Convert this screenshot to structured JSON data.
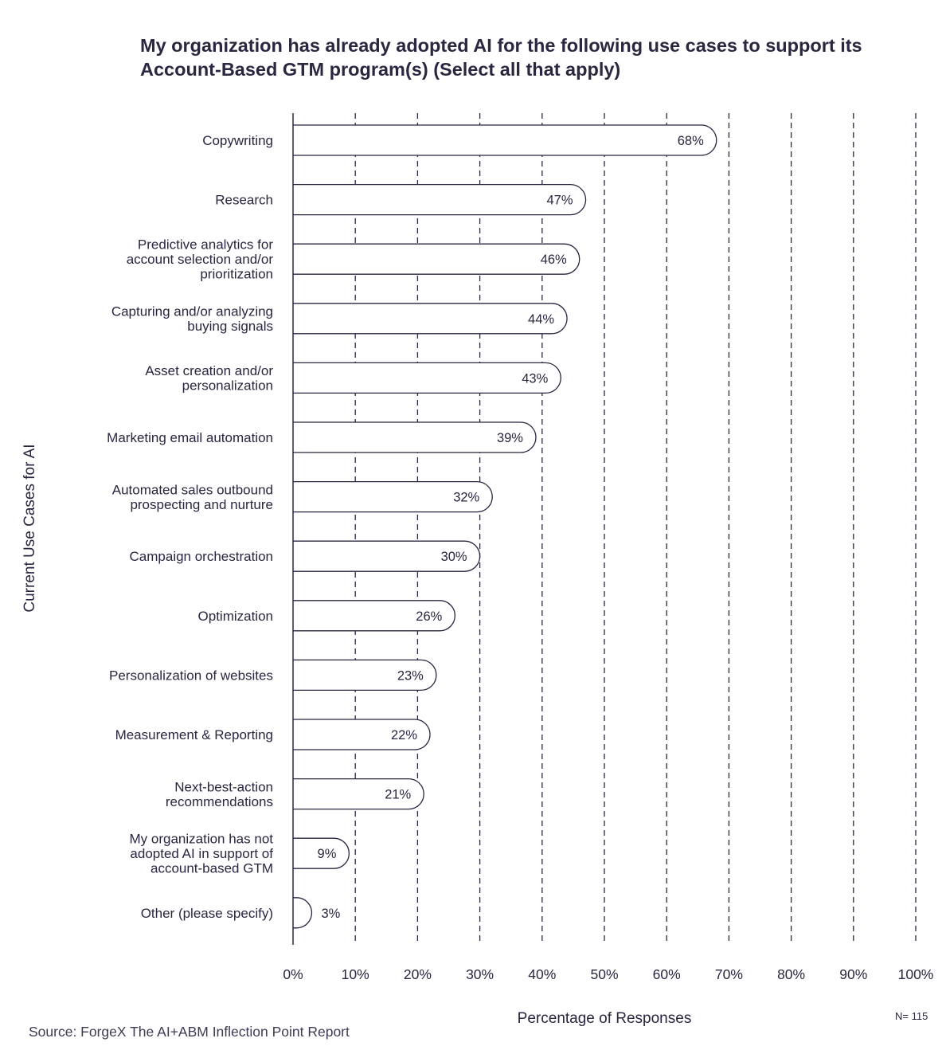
{
  "chart_data": {
    "type": "bar",
    "orientation": "horizontal",
    "title": "My organization has already adopted AI for the following use cases to support its Account-Based GTM program(s) (Select all that apply)",
    "title_lines": [
      "My organization has already adopted AI for the following use cases to support its",
      "Account-Based GTM program(s) (Select all that apply)"
    ],
    "ylabel": "Current Use Cases for AI",
    "xlabel": "Percentage of Responses",
    "xlim": [
      0,
      100
    ],
    "x_ticks": [
      "0%",
      "10%",
      "20%",
      "30%",
      "40%",
      "50%",
      "60%",
      "70%",
      "80%",
      "90%",
      "100%"
    ],
    "grid": "vertical dashed",
    "categories": [
      "Copywriting",
      "Research",
      "Predictive analytics for account selection and/or prioritization",
      "Capturing and/or analyzing buying signals",
      "Asset creation and/or personalization",
      "Marketing email automation",
      "Automated sales outbound prospecting and nurture",
      "Campaign orchestration",
      "Optimization",
      "Personalization of websites",
      "Measurement & Reporting",
      "Next-best-action recommendations",
      "My organization has not adopted AI in support of account-based GTM",
      "Other (please specify)"
    ],
    "category_lines": [
      [
        "Copywriting"
      ],
      [
        "Research"
      ],
      [
        "Predictive analytics for",
        "account selection and/or",
        "prioritization"
      ],
      [
        "Capturing and/or analyzing",
        "buying signals"
      ],
      [
        "Asset creation and/or",
        "personalization"
      ],
      [
        "Marketing email automation"
      ],
      [
        "Automated sales outbound",
        "prospecting and nurture"
      ],
      [
        "Campaign orchestration"
      ],
      [
        "Optimization"
      ],
      [
        "Personalization of websites"
      ],
      [
        "Measurement & Reporting"
      ],
      [
        "Next-best-action",
        "recommendations"
      ],
      [
        "My organization has not",
        "adopted AI in support of",
        "account-based GTM"
      ],
      [
        "Other (please specify)"
      ]
    ],
    "values": [
      68,
      47,
      46,
      44,
      43,
      39,
      32,
      30,
      26,
      23,
      22,
      21,
      9,
      3
    ],
    "value_labels": [
      "68%",
      "47%",
      "46%",
      "44%",
      "43%",
      "39%",
      "32%",
      "30%",
      "26%",
      "23%",
      "22%",
      "21%",
      "9%",
      "3%"
    ]
  },
  "footnote": "N= 115",
  "source": "Source: ForgeX The AI+ABM Inflection Point Report",
  "colors": {
    "bar_fill": "#ffffff",
    "bar_stroke": "#2b2540",
    "text": "#2a2540",
    "grid": "#2b2540"
  }
}
